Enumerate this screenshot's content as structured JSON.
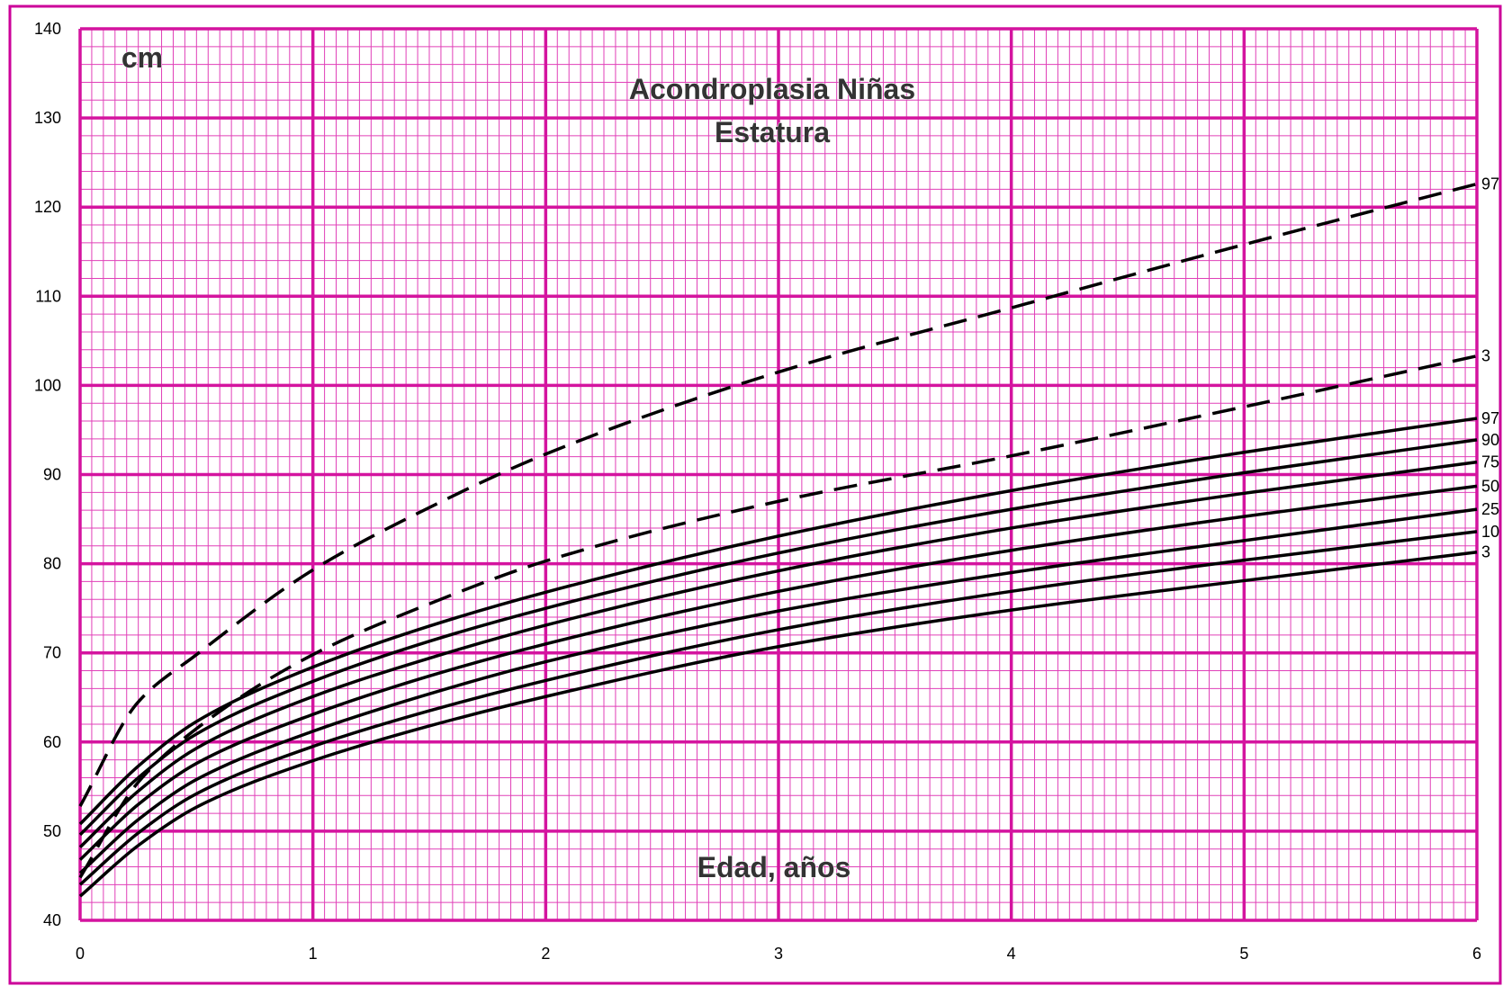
{
  "colors": {
    "grid_major": "#d4149f",
    "grid_minor": "#e040b8",
    "frame": "#cc0099",
    "curve": "#000000"
  },
  "texts": {
    "unit": "cm",
    "title_line1": "Acondroplasia  Niñas",
    "title_line2": "Estatura",
    "xlabel": "Edad, años"
  },
  "chart_data": {
    "type": "line",
    "title": "Acondroplasia  Niñas Estatura",
    "xlabel": "Edad, años",
    "ylabel": "cm",
    "xlim": [
      0,
      6
    ],
    "ylim": [
      40,
      140
    ],
    "x_ticks": [
      "0",
      "1",
      "2",
      "3",
      "4",
      "5",
      "6"
    ],
    "y_ticks": [
      "40",
      "50",
      "60",
      "70",
      "80",
      "90",
      "100",
      "110",
      "120",
      "130",
      "140"
    ],
    "grid": true,
    "x": [
      0,
      0.25,
      0.5,
      1,
      1.5,
      2,
      3,
      4,
      5,
      6
    ],
    "series": [
      {
        "name": "97",
        "style": "dashed",
        "values": [
          52.8,
          64.5,
          69.8,
          79.3,
          86.3,
          92.3,
          101.5,
          108.7,
          115.8,
          122.6
        ]
      },
      {
        "name": "3",
        "style": "dashed",
        "values": [
          44.8,
          55.5,
          61.5,
          69.8,
          75.5,
          80.3,
          87.0,
          92.1,
          97.6,
          103.3
        ]
      },
      {
        "name": "97",
        "style": "solid",
        "values": [
          50.8,
          57.3,
          62.3,
          68.4,
          73.0,
          76.8,
          83.1,
          88.2,
          92.5,
          96.3
        ]
      },
      {
        "name": "90",
        "style": "solid",
        "values": [
          49.6,
          56.0,
          60.9,
          66.8,
          71.3,
          75.0,
          81.2,
          86.1,
          90.2,
          93.9
        ]
      },
      {
        "name": "75",
        "style": "solid",
        "values": [
          48.2,
          54.5,
          59.3,
          65.1,
          69.4,
          73.1,
          79.2,
          84.0,
          87.9,
          91.4
        ]
      },
      {
        "name": "50",
        "style": "solid",
        "values": [
          46.8,
          53.0,
          57.6,
          63.1,
          67.4,
          71.0,
          76.9,
          81.5,
          85.3,
          88.7
        ]
      },
      {
        "name": "25",
        "style": "solid",
        "values": [
          45.3,
          51.3,
          55.8,
          61.2,
          65.4,
          69.0,
          74.7,
          79.0,
          82.6,
          86.1
        ]
      },
      {
        "name": "10",
        "style": "solid",
        "values": [
          44.0,
          49.8,
          54.2,
          59.5,
          63.5,
          66.9,
          72.6,
          76.9,
          80.4,
          83.6
        ]
      },
      {
        "name": "3",
        "style": "solid",
        "values": [
          42.7,
          48.4,
          52.7,
          57.9,
          61.8,
          65.1,
          70.7,
          74.8,
          78.1,
          81.3
        ]
      }
    ]
  }
}
